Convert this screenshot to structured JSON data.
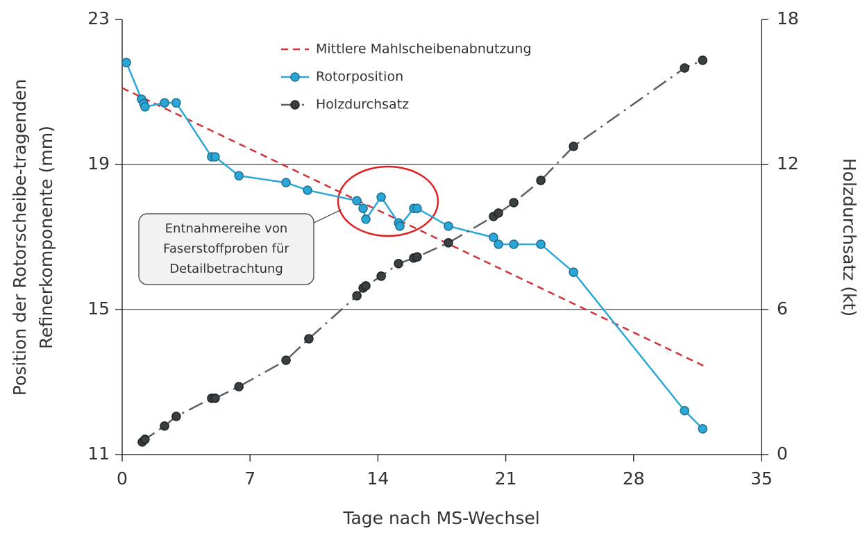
{
  "chart_data": {
    "type": "line",
    "xlabel": "Tage nach MS-Wechsel",
    "ylabel": [
      "Position der Rotorscheibe-tragenden",
      "Refinerkomponente (mm)"
    ],
    "y2label": "Holzdurchsatz (kt)",
    "xlim": [
      0,
      35
    ],
    "xticks": [
      0,
      7,
      14,
      21,
      28,
      35
    ],
    "ylim": [
      11,
      23
    ],
    "yticks": [
      11,
      15,
      19,
      23
    ],
    "y2lim": [
      0,
      18
    ],
    "y2ticks": [
      0,
      6,
      12,
      18
    ],
    "grid": true,
    "legend": "top",
    "annotation": [
      "Entnahmereihe von",
      "Faserstoffproben für",
      "Detailbetrachtung"
    ],
    "series": [
      {
        "name": "Mittlere Mahlscheibenabnutzung",
        "color": "#d0323a",
        "style": "dashed",
        "marker": false,
        "x": [
          0,
          31.9
        ],
        "values": [
          21.11,
          13.43
        ]
      },
      {
        "name": "Rotorposition",
        "color": "#2aa7d6",
        "style": "solid",
        "marker": true,
        "x": [
          0.23,
          1.06,
          1.18,
          1.25,
          2.32,
          2.96,
          4.9,
          5.09,
          6.39,
          8.97,
          10.15,
          12.85,
          13.19,
          13.34,
          14.18,
          15.13,
          15.2,
          15.96,
          16.15,
          17.86,
          20.33,
          20.6,
          21.44,
          22.92,
          24.71,
          30.79,
          31.78
        ],
        "values": [
          21.81,
          20.8,
          20.68,
          20.59,
          20.7,
          20.7,
          19.21,
          19.21,
          18.69,
          18.5,
          18.29,
          18.0,
          17.79,
          17.49,
          18.1,
          17.39,
          17.3,
          17.79,
          17.79,
          17.3,
          16.99,
          16.8,
          16.8,
          16.8,
          16.03,
          12.21,
          11.71
        ]
      },
      {
        "name": "Holzdurchsatz",
        "color": "#5a5f63",
        "style": "dashdot",
        "marker": true,
        "axis": "y2",
        "x": [
          1.1,
          1.25,
          2.32,
          2.96,
          4.9,
          5.09,
          6.39,
          8.97,
          10.22,
          12.85,
          13.19,
          13.34,
          14.18,
          15.13,
          15.96,
          16.15,
          17.86,
          20.33,
          20.6,
          21.44,
          22.92,
          24.71,
          30.79,
          31.78
        ],
        "values": [
          0.52,
          0.63,
          1.18,
          1.58,
          2.33,
          2.33,
          2.81,
          3.9,
          4.79,
          6.57,
          6.89,
          6.98,
          7.38,
          7.9,
          8.13,
          8.18,
          8.76,
          9.85,
          9.99,
          10.42,
          11.34,
          12.75,
          15.99,
          16.31
        ]
      }
    ]
  }
}
